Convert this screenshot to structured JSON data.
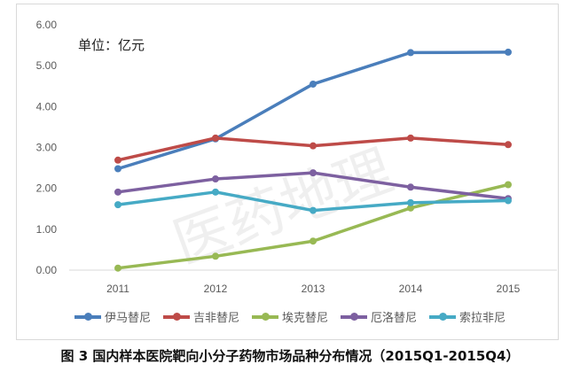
{
  "chart_data": {
    "type": "line",
    "title": "",
    "unit_label": "单位：亿元",
    "watermark": "医药地理",
    "caption": "图 3  国内样本医院靶向小分子药物市场品种分布情况（2015Q1-2015Q4）",
    "categories": [
      "2011",
      "2012",
      "2013",
      "2014",
      "2015"
    ],
    "ylim": [
      0,
      6
    ],
    "yticks": [
      "0.00",
      "1.00",
      "2.00",
      "3.00",
      "4.00",
      "5.00",
      "6.00"
    ],
    "grid": false,
    "legend": "bottom",
    "series": [
      {
        "name": "伊马替尼",
        "color": "#4a7ebb",
        "values": [
          2.48,
          3.21,
          4.55,
          5.32,
          5.33
        ]
      },
      {
        "name": "吉非替尼",
        "color": "#be4b48",
        "values": [
          2.69,
          3.23,
          3.04,
          3.23,
          3.07
        ]
      },
      {
        "name": "埃克替尼",
        "color": "#98b954",
        "values": [
          0.05,
          0.34,
          0.71,
          1.52,
          2.09
        ]
      },
      {
        "name": "厄洛替尼",
        "color": "#7d60a0",
        "values": [
          1.91,
          2.23,
          2.38,
          2.03,
          1.75
        ]
      },
      {
        "name": "索拉非尼",
        "color": "#46aac5",
        "values": [
          1.6,
          1.91,
          1.46,
          1.65,
          1.7
        ]
      }
    ]
  }
}
